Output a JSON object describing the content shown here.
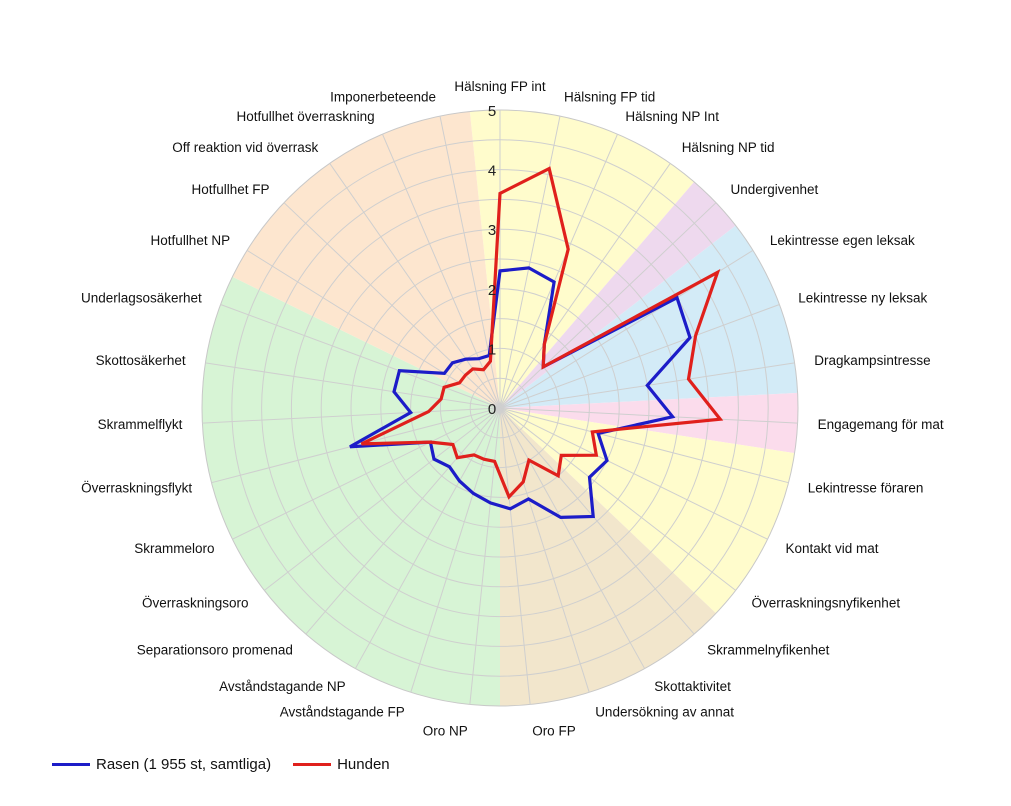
{
  "chart_data": {
    "type": "radar",
    "title": "",
    "rmax": 5,
    "ticks": [
      "0",
      "1",
      "2",
      "3",
      "4",
      "5"
    ],
    "categories": [
      "Hälsning FP int",
      "Hälsning FP tid",
      "Hälsning NP Int",
      "Hälsning NP tid",
      "Undergivenhet",
      "Lekintresse egen leksak",
      "Lekintresse ny leksak",
      "Dragkampsintresse",
      "Engagemang för mat",
      "Lekintresse föraren",
      "Kontakt vid mat",
      "Överraskningsnyfikenhet",
      "Skrammelnyfikenhet",
      "Skottaktivitet",
      "Undersökning av annat",
      "Oro FP",
      "Oro NP",
      "Avståndstagande FP",
      "Avståndstagande NP",
      "Separationsoro promenad",
      "Överraskningsoro",
      "Skrammeloro",
      "Överraskningsflykt",
      "Skrammelflykt",
      "Skottosäkerhet",
      "Underlagsosäkerhet",
      "Hotfullhet NP",
      "Hotfullhet FP",
      "Off reaktion vid överrask",
      "Hotfullhet överraskning",
      "Imponerbeteende"
    ],
    "sectors": [
      {
        "from": 0,
        "to": 4,
        "color": "#fffccc"
      },
      {
        "from": 4,
        "to": 5,
        "color": "#eed9ee"
      },
      {
        "from": 5,
        "to": 8,
        "color": "#d3ebf7"
      },
      {
        "from": 8,
        "to": 9,
        "color": "#fbdcec"
      },
      {
        "from": 9,
        "to": 12,
        "color": "#fffccc"
      },
      {
        "from": 12,
        "to": 16,
        "color": "#f2e6cc"
      },
      {
        "from": 16,
        "to": 26,
        "color": "#d7f4d5"
      },
      {
        "from": 26,
        "to": 31,
        "color": "#fde6cf"
      }
    ],
    "series": [
      {
        "name": "Rasen (1 955 st, samtliga)",
        "color": "#1c1cc8",
        "values": [
          2.3,
          2.4,
          2.3,
          1.3,
          1.0,
          3.5,
          3.4,
          2.5,
          2.9,
          1.7,
          2.0,
          1.9,
          2.4,
          2.1,
          1.6,
          1.7,
          1.6,
          1.5,
          1.4,
          1.3,
          1.4,
          1.3,
          2.6,
          1.5,
          1.8,
          1.8,
          1.1,
          1.1,
          1.0,
          0.9,
          0.9
        ]
      },
      {
        "name": "Hunden",
        "color": "#e0201c",
        "values": [
          3.6,
          4.1,
          2.9,
          1.3,
          1.0,
          4.3,
          3.5,
          3.2,
          3.7,
          1.6,
          1.8,
          1.3,
          1.5,
          1.0,
          1.3,
          1.5,
          0.9,
          0.9,
          0.9,
          1.1,
          1.0,
          1.3,
          2.4,
          1.2,
          1.0,
          1.0,
          0.8,
          0.8,
          0.8,
          0.7,
          0.8
        ]
      }
    ],
    "legend": {
      "placement": "bottom-left"
    }
  },
  "legend_items": [
    {
      "label": "Rasen (1 955 st, samtliga)",
      "color": "#1c1cc8"
    },
    {
      "label": "Hunden",
      "color": "#e0201c"
    }
  ]
}
